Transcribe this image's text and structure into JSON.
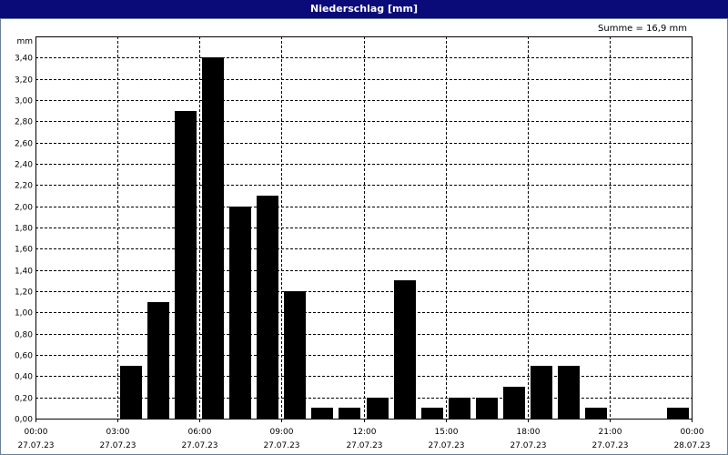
{
  "window": {
    "title": "Niederschlag [mm]"
  },
  "summary": {
    "text": "Summe = 16,9 mm"
  },
  "chart_data": {
    "type": "bar",
    "title": "Niederschlag [mm]",
    "ylabel": "mm",
    "ylim": [
      0,
      3.6
    ],
    "yticks": [
      "0,00",
      "0,20",
      "0,40",
      "0,60",
      "0,80",
      "1,00",
      "1,20",
      "1,40",
      "1,60",
      "1,80",
      "2,00",
      "2,20",
      "2,40",
      "2,60",
      "2,80",
      "3,00",
      "3,20",
      "3,40"
    ],
    "xticks": [
      {
        "time": "00:00",
        "date": "27.07.23"
      },
      {
        "time": "03:00",
        "date": "27.07.23"
      },
      {
        "time": "06:00",
        "date": "27.07.23"
      },
      {
        "time": "09:00",
        "date": "27.07.23"
      },
      {
        "time": "12:00",
        "date": "27.07.23"
      },
      {
        "time": "15:00",
        "date": "27.07.23"
      },
      {
        "time": "18:00",
        "date": "27.07.23"
      },
      {
        "time": "21:00",
        "date": "27.07.23"
      },
      {
        "time": "00:00",
        "date": "28.07.23"
      }
    ],
    "grid": true,
    "bar_color": "#000000",
    "bars": [
      {
        "hour": 0,
        "value": 0
      },
      {
        "hour": 1,
        "value": 0
      },
      {
        "hour": 2,
        "value": 0
      },
      {
        "hour": 3,
        "value": 0.5
      },
      {
        "hour": 4,
        "value": 1.1
      },
      {
        "hour": 5,
        "value": 2.9
      },
      {
        "hour": 6,
        "value": 3.4
      },
      {
        "hour": 7,
        "value": 2.0
      },
      {
        "hour": 8,
        "value": 2.1
      },
      {
        "hour": 9,
        "value": 1.2
      },
      {
        "hour": 10,
        "value": 0.1
      },
      {
        "hour": 11,
        "value": 0.1
      },
      {
        "hour": 12,
        "value": 0.2
      },
      {
        "hour": 13,
        "value": 1.3
      },
      {
        "hour": 14,
        "value": 0.1
      },
      {
        "hour": 15,
        "value": 0.2
      },
      {
        "hour": 16,
        "value": 0.2
      },
      {
        "hour": 17,
        "value": 0.3
      },
      {
        "hour": 18,
        "value": 0.5
      },
      {
        "hour": 19,
        "value": 0.5
      },
      {
        "hour": 20,
        "value": 0.1
      },
      {
        "hour": 21,
        "value": 0
      },
      {
        "hour": 22,
        "value": 0
      },
      {
        "hour": 23,
        "value": 0.1
      }
    ]
  }
}
